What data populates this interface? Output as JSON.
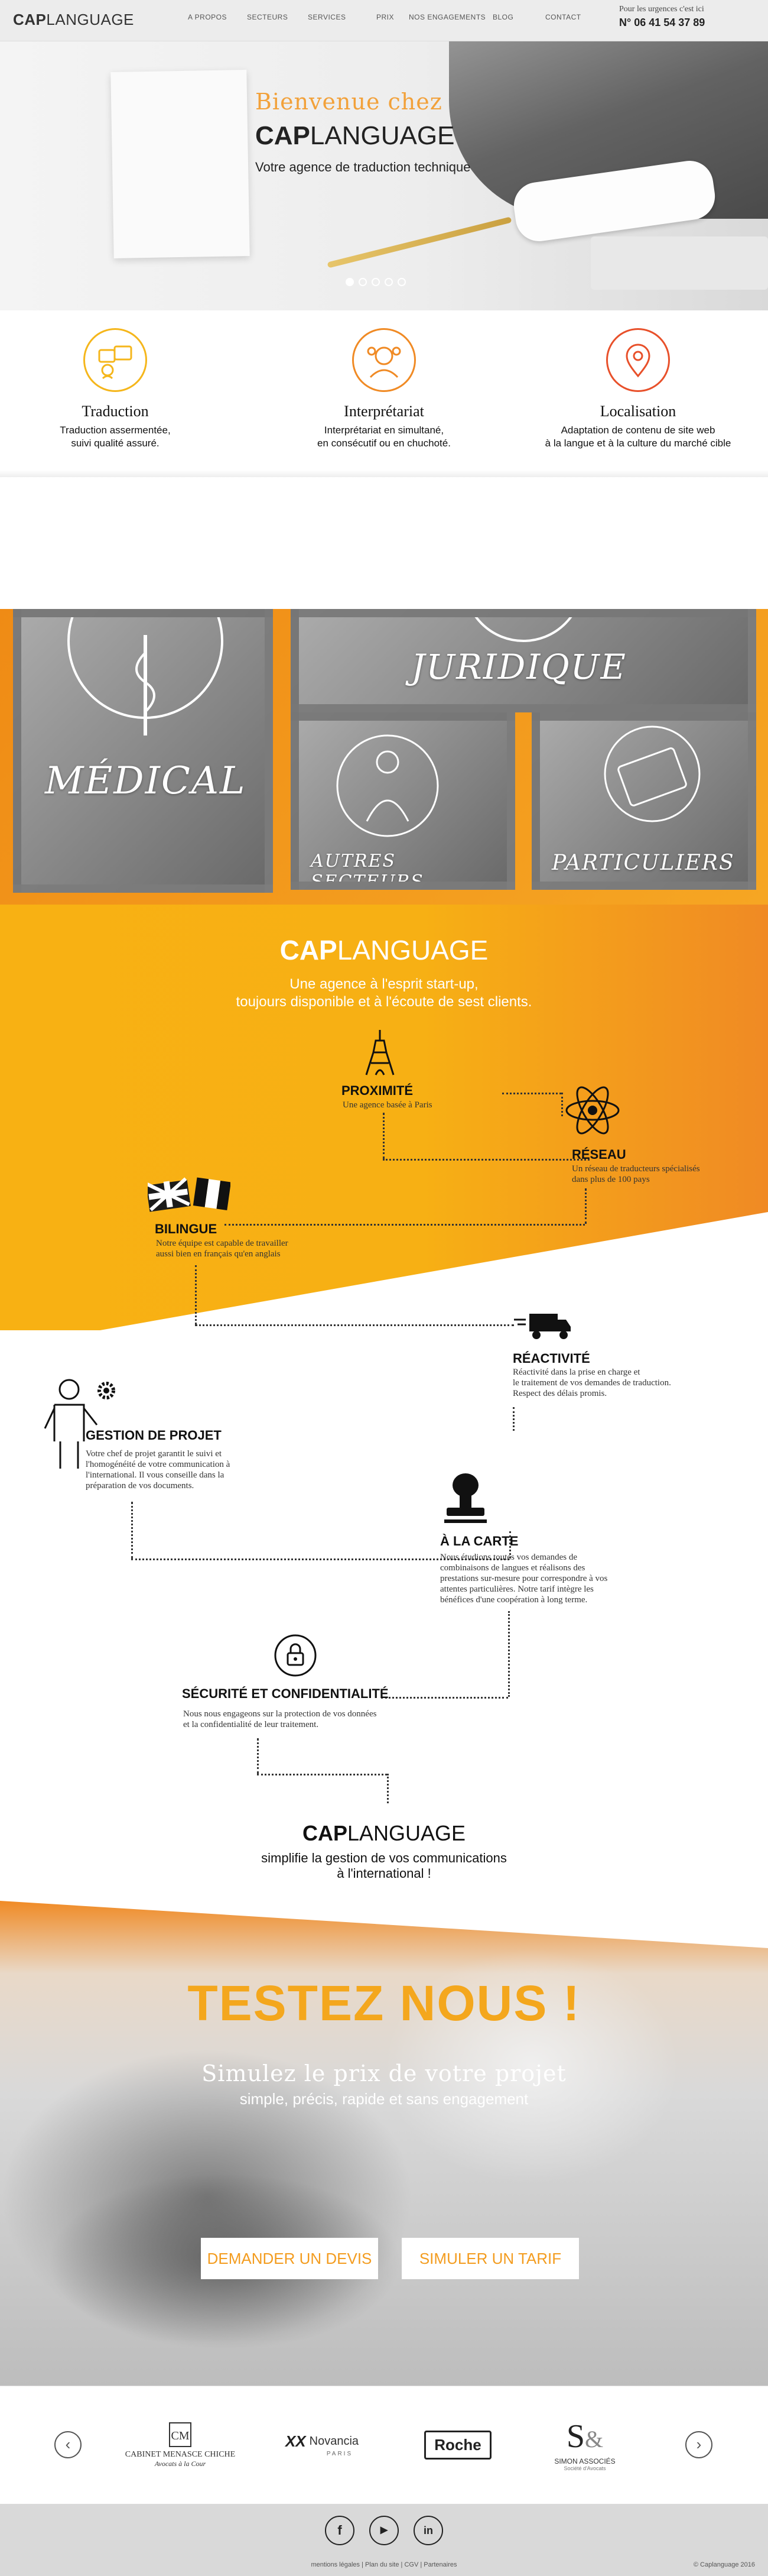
{
  "nav": {
    "logo_bold": "CAP",
    "logo_light": "LANGUAGE",
    "items": [
      "A PROPOS",
      "SECTEURS",
      "SERVICES",
      "PRIX",
      "NOS ENGAGEMENTS",
      "BLOG",
      "CONTACT"
    ],
    "urgency_text": "Pour les urgences c'est ici",
    "phone": "N° 06 41 54 37 89"
  },
  "hero": {
    "welcome": "Bienvenue chez",
    "brand_bold": "CAP",
    "brand_light": "LANGUAGE",
    "subtitle": "Votre agence de traduction technique"
  },
  "services": [
    {
      "title": "Traduction",
      "lines": [
        "Traduction assermentée,",
        "suivi qualité assuré."
      ]
    },
    {
      "title": "Interprétariat",
      "lines": [
        "Interprétariat en simultané,",
        "en consécutif ou en chuchoté."
      ]
    },
    {
      "title": "Localisation",
      "lines": [
        "Adaptation de contenu de site web",
        "à la langue et à la culture du marché cible"
      ]
    }
  ],
  "sectors": {
    "medical": "MÉDICAL",
    "juridique": "JURIDIQUE",
    "autres": "AUTRES SECTEURS",
    "particuliers": "PARTICULIERS"
  },
  "intro": {
    "brand_bold": "CAP",
    "brand_light": "LANGUAGE",
    "lines": [
      "Une agence à l'esprit start-up,",
      "toujours disponible et à l'écoute de sest clients."
    ]
  },
  "features": {
    "proximite": {
      "title": "PROXIMITÉ",
      "text": "Une agence basée à Paris"
    },
    "reseau": {
      "title": "RÉSEAU",
      "lines": [
        "Un réseau de traducteurs spécialisés",
        "dans plus de 100 pays"
      ]
    },
    "bilingue": {
      "title": "BILINGUE",
      "lines": [
        "Notre équipe est capable de travailler",
        "aussi bien en français qu'en anglais"
      ]
    },
    "reactivite": {
      "title": "RÉACTIVITÉ",
      "lines": [
        "Réactivité dans la prise en charge et",
        "le traitement de vos demandes de traduction.",
        "Respect des délais promis."
      ]
    },
    "gestion": {
      "title": "GESTION DE PROJET",
      "lines": [
        "Votre chef de projet garantit le suivi et",
        "l'homogénéité de votre  communication à",
        "l'international. Il vous conseille dans la",
        "préparation de vos documents."
      ]
    },
    "carte": {
      "title": "À LA CARTE",
      "lines": [
        "Nous étudions toutes vos demandes de",
        "combinaisons de langues et réalisons des",
        "prestations sur-mesure pour correspondre à vos",
        "attentes particulières. Notre tarif intègre les",
        "bénéfices d'une coopération à long terme."
      ]
    },
    "securite": {
      "title": "SÉCURITÉ ET CONFIDENTIALITÉ",
      "lines": [
        "Nous nous engageons sur la protection de vos données",
        "et la confidentialité de leur traitement."
      ]
    }
  },
  "closing": {
    "brand_bold": "CAP",
    "brand_light": "LANGUAGE",
    "lines": [
      "simplifie la gestion de vos communications",
      "à l'international !"
    ]
  },
  "testez": {
    "title": "TESTEZ NOUS !",
    "subtitle": "Simulez le prix de votre projet",
    "subtitle2": "simple, précis, rapide et sans engagement",
    "btn_devis": "DEMANDER UN DEVIS",
    "btn_tarif": "SIMULER UN TARIF"
  },
  "partners": {
    "cabinet_line1": "CABINET MENASCE CHICHE",
    "cabinet_line2": "Avocats à la Cour",
    "novancia": "Novancia",
    "novancia_sub": "PARIS",
    "roche": "Roche",
    "simon": "SIMON ASSOCIÉS",
    "simon_sub": "Société d'Avocats",
    "prev": "‹",
    "next": "›"
  },
  "footer": {
    "social": [
      "f",
      "▶",
      "in"
    ],
    "links": "mentions légales | Plan du site | CGV | Partenaires",
    "copy": "© Caplanguage 2016"
  },
  "colors": {
    "accent": "#f39c1f",
    "orange_dark": "#ef8b15",
    "yellow": "#f8b113"
  }
}
